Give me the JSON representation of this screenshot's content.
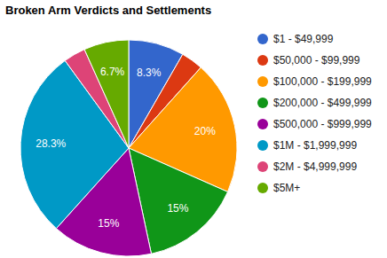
{
  "chart_data": {
    "type": "pie",
    "title": "Broken Arm Verdicts and Settlements",
    "categories": [
      "$1 - $49,999",
      "$50,000 - $99,999",
      "$100,000 - $199,999",
      "$200,000 - $499,999",
      "$500,000 - $999,999",
      "$1M - $1,999,999",
      "$2M - $4,999,999",
      "$5M+"
    ],
    "values": [
      8.3,
      3.3,
      20,
      15,
      15,
      28.3,
      3.3,
      6.7
    ],
    "value_labels": [
      "8.3%",
      null,
      "20%",
      "15%",
      "15%",
      "28.3%",
      null,
      "6.7%"
    ],
    "colors": [
      "#3366cc",
      "#dc3912",
      "#ff9900",
      "#109618",
      "#990099",
      "#0099c6",
      "#dd4477",
      "#66aa00"
    ],
    "data_labels": true,
    "legend": "right"
  }
}
